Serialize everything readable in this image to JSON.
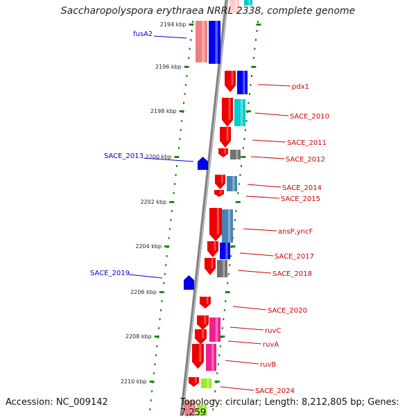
{
  "title": "Saccharopolyspora erythraea NRRL 2338, complete genome",
  "accession": "Accession: NC_009142",
  "summary": "Topology: circular; Length: 8,212,805 bp; Genes: 7,259",
  "colors": {
    "backbone": "#808080",
    "left_label": "#0000cc",
    "right_label": "#cc0000",
    "dots": "#1a8a1a",
    "red_gene": "#ee0000",
    "pink_gene": "#f08080",
    "blue_gene": "#0000ee",
    "cyan_gene": "#00cccc",
    "steel_gene": "#4682b4",
    "gray_gene": "#707070",
    "magenta_gene": "#ee2090",
    "lime_gene": "#99ee22"
  },
  "ticks": [
    "2194 kbp",
    "2196 kbp",
    "2198 kbp",
    "2200 kbp",
    "2202 kbp",
    "2204 kbp",
    "2206 kbp",
    "2208 kbp",
    "2210 kbp"
  ],
  "left_labels": [
    "fusA2",
    "SACE_2013",
    "SACE_2019"
  ],
  "right_labels": [
    "pdx1",
    "SACE_2010",
    "SACE_2011",
    "SACE_2012",
    "SACE_2014",
    "SACE_2015",
    "ansP,yncF",
    "SACE_2017",
    "SACE_2018",
    "SACE_2020",
    "ruvC",
    "ruvA",
    "ruvB",
    "SACE_2024"
  ]
}
